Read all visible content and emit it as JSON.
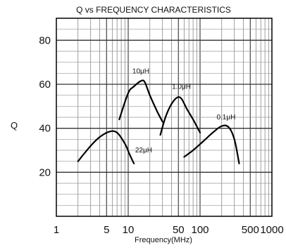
{
  "chart_data": {
    "type": "line",
    "title": "Q vs FREQUENCY CHARACTERISTICS",
    "xlabel": "Frequency(MHz)",
    "ylabel": "Q",
    "xscale": "log",
    "xlim": [
      1,
      1000
    ],
    "ylim": [
      0,
      90
    ],
    "grid": true,
    "legend": "none (series labeled on curves)",
    "x_ticks": [
      {
        "value": 1,
        "label": "1"
      },
      {
        "value": 5,
        "label": "5"
      },
      {
        "value": 10,
        "label": "10"
      },
      {
        "value": 50,
        "label": "50"
      },
      {
        "value": 100,
        "label": "100"
      },
      {
        "value": 500,
        "label": "500"
      },
      {
        "value": 1000,
        "label": "1000"
      }
    ],
    "y_ticks": [
      {
        "value": 20,
        "label": "20"
      },
      {
        "value": 40,
        "label": "40"
      },
      {
        "value": 60,
        "label": "60"
      },
      {
        "value": 80,
        "label": "80"
      }
    ],
    "series": [
      {
        "name": "22μH",
        "x": [
          2,
          3,
          4,
          5.5,
          7,
          9,
          10.5,
          12
        ],
        "y": [
          25,
          32,
          36,
          38.5,
          38,
          33,
          28,
          24
        ]
      },
      {
        "name": "10μH",
        "x": [
          7.5,
          10,
          12,
          15,
          17,
          20,
          25,
          30
        ],
        "y": [
          44,
          56,
          59,
          61.5,
          61,
          55,
          48,
          43
        ]
      },
      {
        "name": "1.0μH",
        "x": [
          28,
          33,
          40,
          48,
          55,
          65,
          80,
          100
        ],
        "y": [
          37,
          45,
          51,
          54,
          53.5,
          49,
          44,
          38
        ]
      },
      {
        "name": "0.1μH",
        "x": [
          60,
          80,
          110,
          150,
          200,
          250,
          300,
          350
        ],
        "y": [
          27,
          30,
          34,
          38,
          41,
          40.5,
          35,
          24
        ]
      }
    ]
  }
}
